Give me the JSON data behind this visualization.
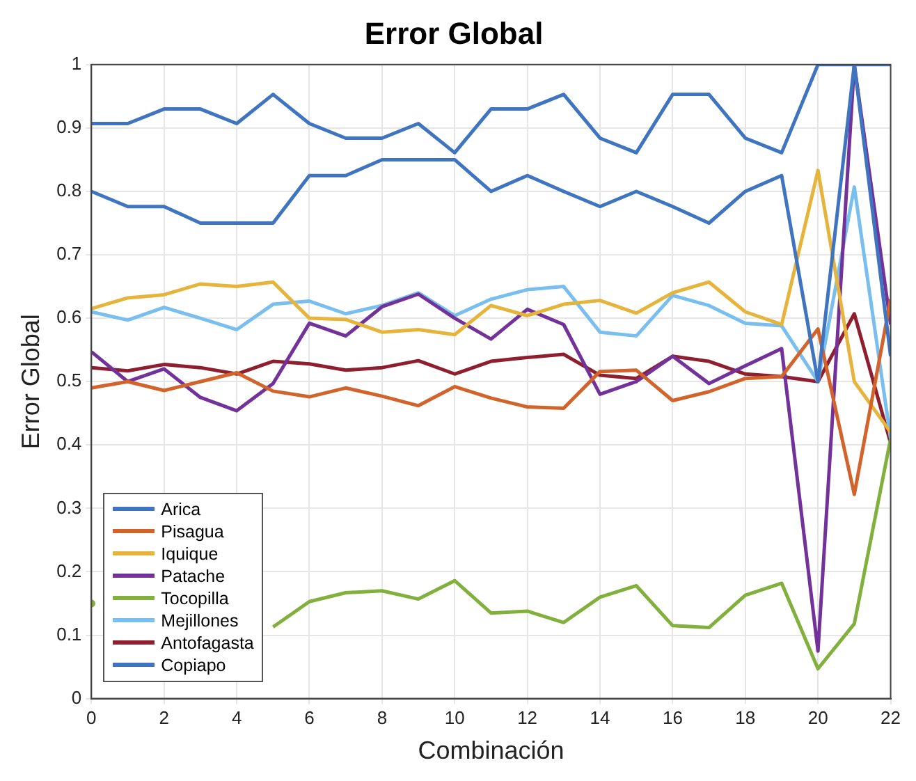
{
  "chart_data": {
    "type": "line",
    "title": "Error Global",
    "xlabel": "Combinación",
    "ylabel": "Error Global",
    "x": [
      0,
      1,
      2,
      3,
      4,
      5,
      6,
      7,
      8,
      9,
      10,
      11,
      12,
      13,
      14,
      15,
      16,
      17,
      18,
      19,
      20,
      21,
      22
    ],
    "series": [
      {
        "name": "Arica",
        "color": "#3f74c0",
        "values": [
          0.8,
          0.776,
          0.776,
          0.75,
          0.75,
          0.75,
          0.825,
          0.825,
          0.85,
          0.85,
          0.85,
          0.8,
          0.825,
          0.8,
          0.776,
          0.8,
          0.776,
          0.75,
          0.8,
          0.825,
          0.5,
          1,
          0.54
        ]
      },
      {
        "name": "Pisagua",
        "color": "#d2632a",
        "values": [
          0.49,
          0.5,
          0.486,
          0.5,
          0.514,
          0.485,
          0.476,
          0.49,
          0.477,
          0.462,
          0.492,
          0.474,
          0.46,
          0.458,
          0.516,
          0.518,
          0.47,
          0.484,
          0.505,
          0.508,
          0.583,
          0.322,
          0.63
        ]
      },
      {
        "name": "Iquique",
        "color": "#e6b43a",
        "values": [
          0.615,
          0.632,
          0.637,
          0.654,
          0.65,
          0.657,
          0.6,
          0.598,
          0.578,
          0.582,
          0.574,
          0.62,
          0.604,
          0.622,
          0.628,
          0.608,
          0.64,
          0.657,
          0.61,
          0.59,
          0.833,
          0.5,
          0.42
        ]
      },
      {
        "name": "Patache",
        "color": "#73319a",
        "values": [
          0.547,
          0.5,
          0.52,
          0.475,
          0.454,
          0.497,
          0.592,
          0.572,
          0.618,
          0.638,
          0.6,
          0.567,
          0.614,
          0.59,
          0.48,
          0.5,
          0.54,
          0.497,
          0.525,
          0.552,
          0.075,
          1,
          0.59
        ]
      },
      {
        "name": "Tocopilla",
        "color": "#82b03c",
        "values": [
          0.15,
          null,
          null,
          null,
          null,
          0.113,
          0.153,
          0.167,
          0.17,
          0.157,
          0.186,
          0.135,
          0.138,
          0.12,
          0.16,
          0.178,
          0.115,
          0.112,
          0.163,
          0.182,
          0.047,
          0.118,
          0.41
        ]
      },
      {
        "name": "Mejillones",
        "color": "#78bff0",
        "values": [
          0.61,
          0.597,
          0.617,
          0.6,
          0.582,
          0.622,
          0.627,
          0.607,
          0.62,
          0.64,
          0.604,
          0.63,
          0.645,
          0.65,
          0.578,
          0.572,
          0.636,
          0.62,
          0.592,
          0.588,
          0.5,
          0.807,
          0.41
        ]
      },
      {
        "name": "Antofagasta",
        "color": "#8f1f2f",
        "values": [
          0.522,
          0.517,
          0.527,
          0.522,
          0.512,
          0.532,
          0.528,
          0.518,
          0.522,
          0.533,
          0.512,
          0.532,
          0.538,
          0.543,
          0.51,
          0.505,
          0.54,
          0.532,
          0.512,
          0.508,
          0.5,
          0.607,
          0.403
        ]
      },
      {
        "name": "Copiapo",
        "color": "#3f74c0",
        "values": [
          0.907,
          0.907,
          0.93,
          0.93,
          0.907,
          0.953,
          0.907,
          0.884,
          0.884,
          0.907,
          0.861,
          0.93,
          0.93,
          0.953,
          0.884,
          0.861,
          0.953,
          0.953,
          0.884,
          0.861,
          1,
          1,
          1
        ]
      }
    ],
    "xlim": [
      0,
      22
    ],
    "xticks": [
      0,
      2,
      4,
      6,
      8,
      10,
      12,
      14,
      16,
      18,
      20,
      22
    ],
    "ylim": [
      0,
      1
    ],
    "yticks": [
      0,
      0.1,
      0.2,
      0.3,
      0.4,
      0.5,
      0.6,
      0.7,
      0.8,
      0.9,
      1
    ],
    "grid": true,
    "legend": "bottom left",
    "marker": "none",
    "line_style": "solid"
  }
}
